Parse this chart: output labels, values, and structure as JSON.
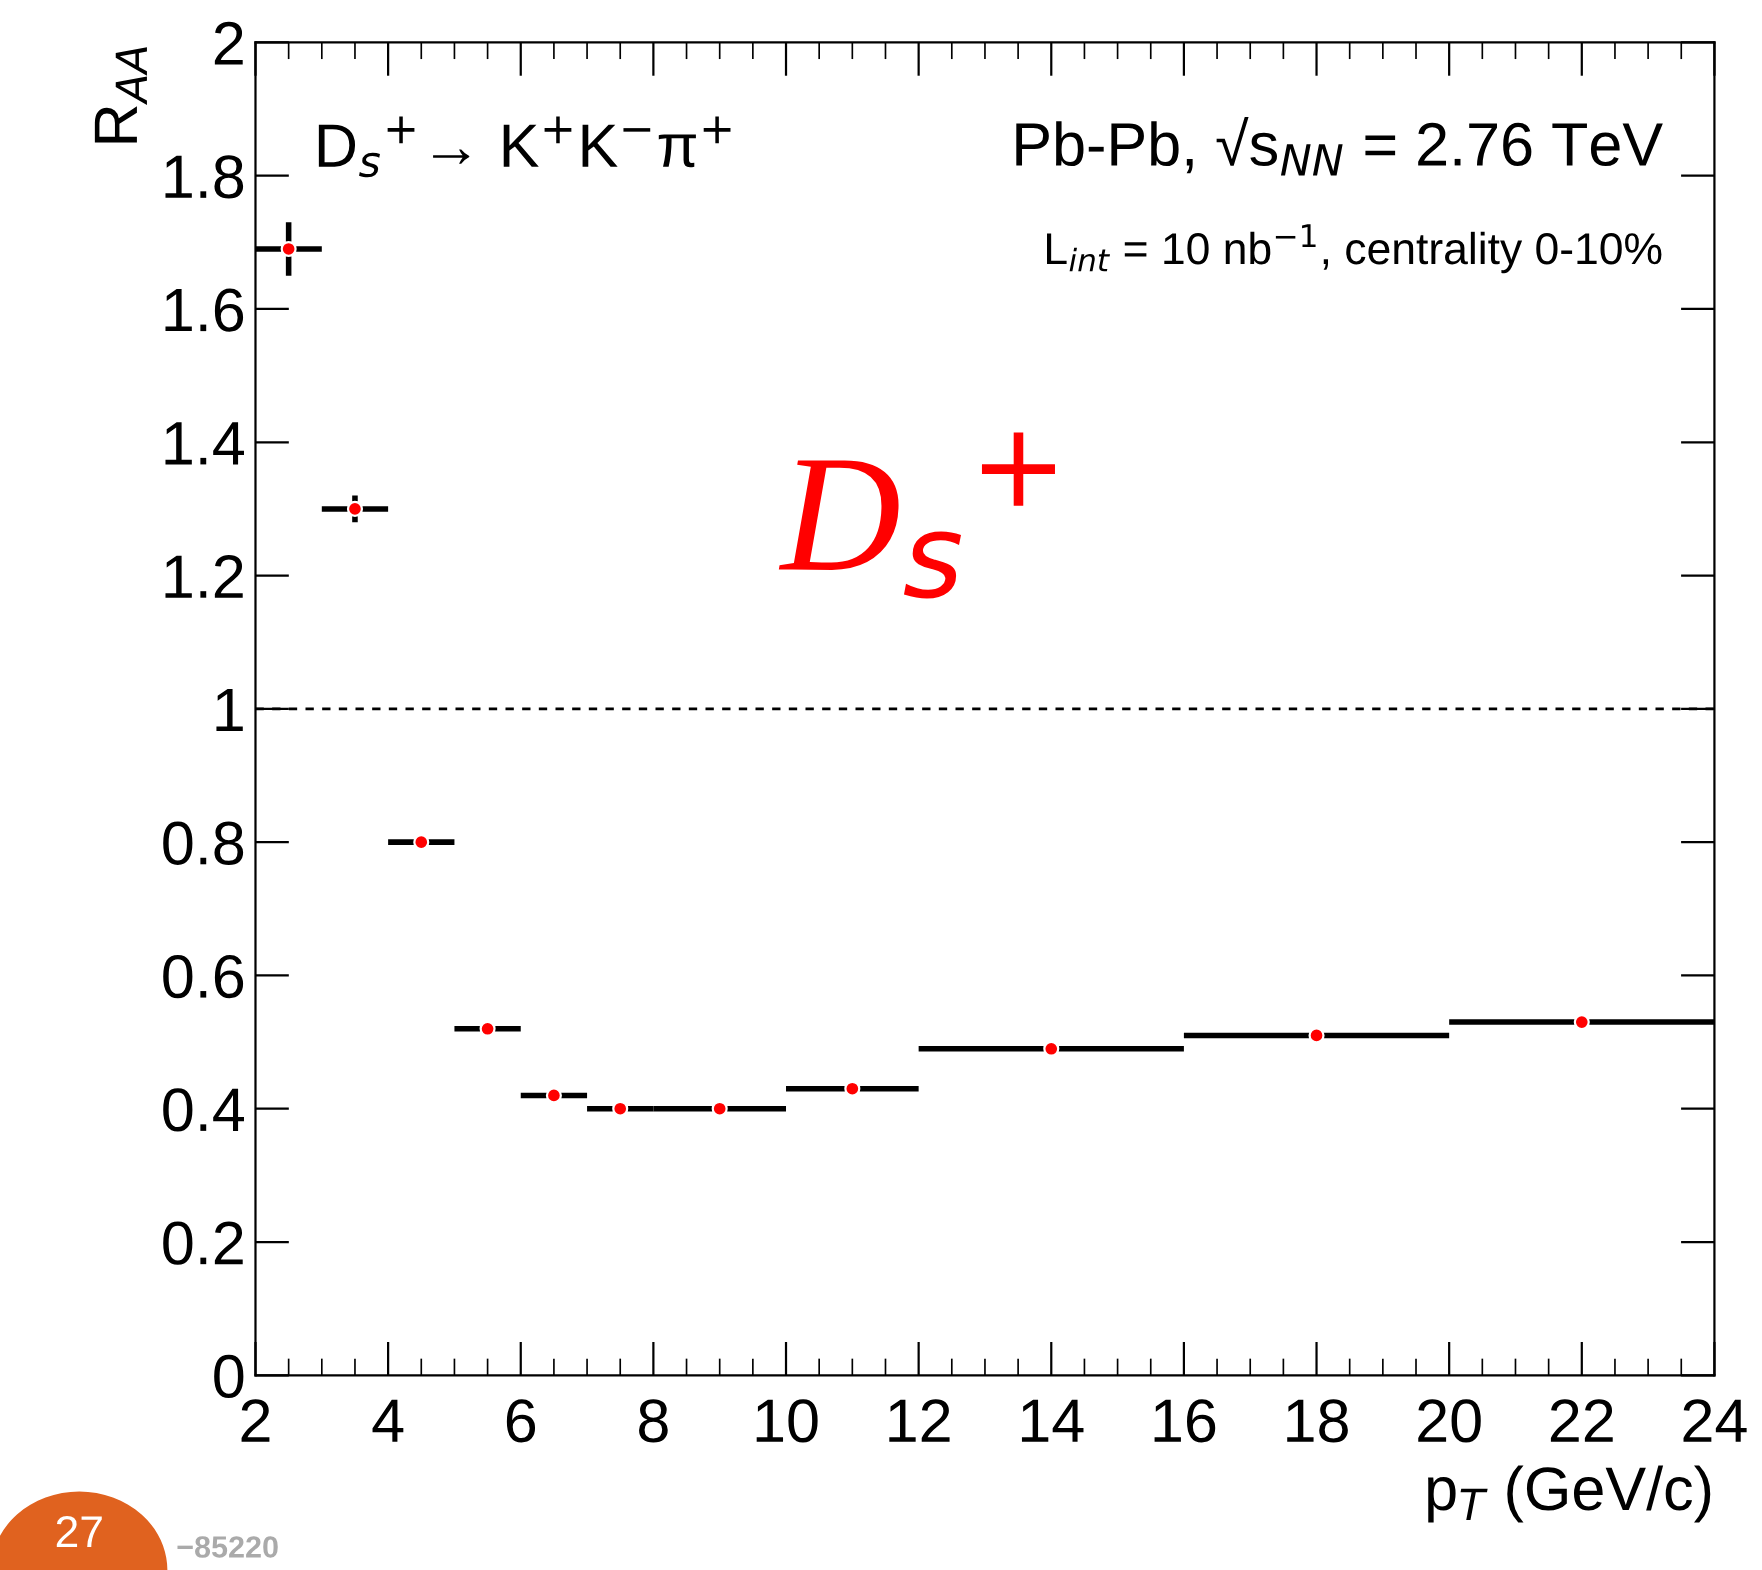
{
  "chart_data": {
    "type": "scatter",
    "xlabel": "p$_{T}$ (GeV/c)",
    "ylabel": "R$_{AA}$",
    "x": [
      2.5,
      3.5,
      4.5,
      5.5,
      6.5,
      7.5,
      9,
      11,
      14,
      18,
      22
    ],
    "series": [
      {
        "color": "#ff0000",
        "values": [
          1.69,
          1.3,
          0.8,
          0.52,
          0.42,
          0.4,
          0.4,
          0.43,
          0.49,
          0.51,
          0.53
        ],
        "xerrors": [
          0.5,
          0.5,
          0.5,
          0.5,
          0.5,
          0.5,
          1,
          1,
          2,
          2,
          2
        ],
        "errors": [
          0.04,
          0.02,
          null,
          null,
          null,
          null,
          null,
          null,
          null,
          null,
          null
        ]
      }
    ],
    "marker": "circle",
    "xlim": [
      2,
      24
    ],
    "xticks": [
      2,
      4,
      6,
      8,
      10,
      12,
      14,
      16,
      18,
      20,
      22,
      24
    ],
    "ylim": [
      0,
      2
    ],
    "yticks": [
      0,
      0.2,
      0.4,
      0.6,
      0.8,
      1,
      1.2,
      1.4,
      1.6,
      1.8,
      2
    ],
    "ref_lines": [
      {
        "axis": "y",
        "value": 1,
        "line_style": "dashed",
        "color": "#000000"
      }
    ],
    "grid": false,
    "legend": false,
    "annotations": [
      "D$_{s}$$^{+}$→ K$^{+}$K$^{−}$π$^{+}$",
      "Pb-Pb, √s$_{NN}$ = 2.76 TeV",
      "L$_{int}$ = 10 nb$^{−1}$, centrality 0-10%",
      "D$_{s}$$^{+}$",
      "27",
      "−85220"
    ]
  }
}
